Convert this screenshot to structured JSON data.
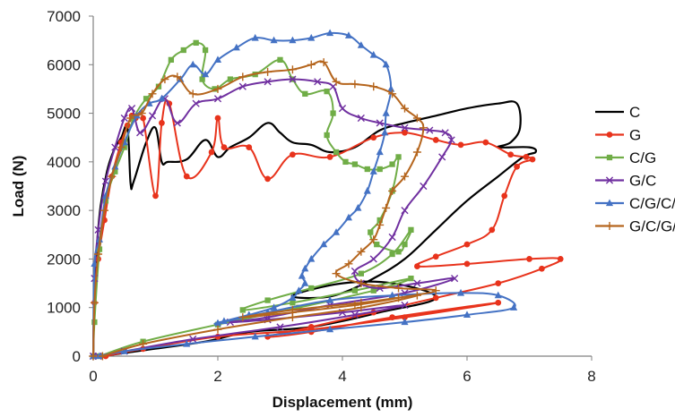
{
  "chart_data": {
    "type": "line",
    "xlabel": "Displacement (mm)",
    "ylabel": "Load (N)",
    "xlim": [
      0,
      8
    ],
    "ylim": [
      0,
      7000
    ],
    "xticks": [
      0,
      2,
      4,
      6,
      8
    ],
    "yticks": [
      0,
      1000,
      2000,
      3000,
      4000,
      5000,
      6000,
      7000
    ],
    "grid": false,
    "legend_position": "right",
    "series": [
      {
        "name": "C",
        "color": "#000000",
        "marker": "none",
        "x": [
          0,
          0.02,
          0.06,
          0.12,
          0.22,
          0.32,
          0.45,
          0.55,
          0.6,
          0.65,
          0.85,
          1.0,
          1.1,
          1.2,
          1.5,
          1.8,
          2.0,
          2.2,
          2.5,
          2.8,
          3.0,
          3.2,
          3.5,
          3.8,
          4.2,
          4.6,
          5.0,
          5.5,
          6.0,
          6.5,
          6.8,
          6.85,
          6.7,
          6.5,
          7.0,
          7.1,
          6.9,
          6.5,
          6.0,
          5.5,
          5.0,
          4.5,
          4.0,
          3.6,
          3.2,
          4.0,
          4.8,
          5.5,
          4.6,
          3.5,
          2.5,
          1.8,
          0.8,
          0.15
        ],
        "y": [
          0,
          1400,
          2300,
          3100,
          3800,
          4200,
          4500,
          4700,
          3550,
          3600,
          4400,
          4700,
          4000,
          4000,
          4050,
          4450,
          4100,
          4300,
          4500,
          4800,
          4600,
          4400,
          4350,
          4200,
          4300,
          4650,
          4800,
          4950,
          5100,
          5200,
          5200,
          4700,
          4400,
          4300,
          4300,
          4200,
          4100,
          3700,
          3200,
          2600,
          2000,
          1600,
          1300,
          1200,
          1250,
          1500,
          1500,
          1200,
          900,
          600,
          500,
          300,
          120,
          0
        ]
      },
      {
        "name": "G",
        "color": "#e8331c",
        "marker": "circle",
        "x": [
          0,
          0.02,
          0.08,
          0.18,
          0.3,
          0.45,
          0.55,
          0.62,
          0.68,
          0.8,
          1.0,
          1.1,
          1.22,
          1.5,
          1.9,
          2.0,
          2.1,
          2.5,
          2.8,
          3.2,
          3.8,
          4.5,
          5.0,
          5.5,
          5.9,
          6.3,
          6.7,
          6.95,
          7.05,
          6.8,
          6.6,
          6.4,
          6.0,
          5.5,
          5.2,
          6.0,
          7.0,
          7.5,
          7.2,
          6.5,
          5.5,
          4.5,
          3.5,
          2.8,
          3.5,
          4.8,
          6.5,
          5.0,
          3.5,
          2.0,
          0.8,
          0.2
        ],
        "y": [
          0,
          1100,
          2000,
          2800,
          3700,
          4400,
          4750,
          4950,
          4900,
          4900,
          3300,
          4800,
          5200,
          3700,
          4200,
          4900,
          4300,
          4300,
          3650,
          4150,
          4100,
          4500,
          4600,
          4450,
          4350,
          4400,
          4150,
          4100,
          4050,
          3900,
          3300,
          2600,
          2300,
          2050,
          1850,
          1900,
          2000,
          2000,
          1800,
          1500,
          1200,
          900,
          600,
          400,
          500,
          800,
          1100,
          800,
          550,
          400,
          150,
          0
        ]
      },
      {
        "name": "C/G",
        "color": "#70ad47",
        "marker": "square",
        "x": [
          0,
          0.02,
          0.1,
          0.2,
          0.35,
          0.5,
          0.65,
          0.85,
          1.05,
          1.25,
          1.45,
          1.65,
          1.8,
          1.75,
          1.95,
          2.2,
          2.6,
          3.0,
          3.2,
          3.4,
          3.75,
          3.85,
          3.75,
          3.9,
          4.05,
          4.2,
          4.4,
          4.6,
          4.8,
          4.9,
          4.8,
          4.6,
          4.45,
          4.55,
          4.9,
          5.0,
          5.1,
          4.8,
          4.3,
          3.5,
          2.8,
          2.4,
          3.2,
          4.2,
          5.1,
          4.5,
          3.3,
          2.0,
          0.8,
          0.1
        ],
        "y": [
          0,
          700,
          2200,
          3200,
          3800,
          4300,
          4900,
          5300,
          5550,
          6100,
          6300,
          6450,
          6300,
          5700,
          5500,
          5700,
          5800,
          6100,
          5700,
          5400,
          5450,
          5000,
          4550,
          4200,
          4000,
          3950,
          3850,
          3850,
          3950,
          4100,
          3400,
          2800,
          2550,
          2300,
          2150,
          2300,
          2600,
          2100,
          1700,
          1400,
          1150,
          950,
          1100,
          1350,
          1600,
          1350,
          1000,
          650,
          300,
          0
        ]
      },
      {
        "name": "G/C",
        "color": "#7030a0",
        "marker": "x",
        "x": [
          0,
          0.02,
          0.08,
          0.2,
          0.35,
          0.5,
          0.62,
          0.75,
          0.95,
          1.15,
          1.35,
          1.65,
          2.0,
          2.4,
          2.8,
          3.2,
          3.6,
          3.85,
          4.0,
          4.3,
          4.6,
          5.0,
          5.4,
          5.65,
          5.75,
          5.6,
          5.3,
          5.0,
          4.8,
          4.5,
          4.2,
          4.3,
          4.6,
          5.2,
          5.8,
          5.0,
          3.8,
          2.8,
          2.2,
          2.8,
          4.0,
          5.0,
          4.2,
          3.0,
          1.6,
          0.5,
          0.08
        ],
        "y": [
          0,
          1600,
          2600,
          3600,
          4300,
          4900,
          5100,
          4600,
          4950,
          5300,
          4800,
          5200,
          5300,
          5550,
          5650,
          5700,
          5650,
          5550,
          5100,
          4900,
          4800,
          4700,
          4650,
          4600,
          4450,
          4100,
          3500,
          3000,
          2450,
          2000,
          1750,
          1500,
          1400,
          1500,
          1600,
          1300,
          1050,
          800,
          700,
          750,
          900,
          1050,
          850,
          600,
          350,
          100,
          0
        ]
      },
      {
        "name": "C/G/C/G",
        "color": "#4472c4",
        "marker": "triangle",
        "x": [
          0,
          0.02,
          0.1,
          0.2,
          0.35,
          0.5,
          0.7,
          0.9,
          1.1,
          1.4,
          1.6,
          1.8,
          2.0,
          2.3,
          2.6,
          2.9,
          3.2,
          3.5,
          3.8,
          4.1,
          4.3,
          4.5,
          4.7,
          4.78,
          4.7,
          4.68,
          4.6,
          4.5,
          4.4,
          4.25,
          4.1,
          3.9,
          3.7,
          3.5,
          3.4,
          3.35,
          3.4,
          3.3,
          3.2,
          2.9,
          2.5,
          2.1,
          2.0,
          2.8,
          3.8,
          4.8,
          5.9,
          6.5,
          6.75,
          6.0,
          5.0,
          3.8,
          2.6,
          1.5,
          0.5,
          0.1
        ],
        "y": [
          0,
          1900,
          2400,
          3300,
          3900,
          4400,
          4950,
          5200,
          5300,
          5700,
          6000,
          5800,
          6100,
          6350,
          6550,
          6500,
          6500,
          6550,
          6650,
          6600,
          6400,
          6200,
          6000,
          5500,
          5000,
          4600,
          4200,
          3800,
          3400,
          3050,
          2850,
          2550,
          2300,
          2000,
          1800,
          1650,
          1500,
          1350,
          1200,
          1000,
          850,
          720,
          680,
          900,
          1150,
          1250,
          1300,
          1250,
          1000,
          850,
          700,
          550,
          400,
          250,
          100,
          0
        ]
      },
      {
        "name": "G/C/G/C",
        "color": "#b5651d",
        "marker": "plus",
        "x": [
          0,
          0.02,
          0.08,
          0.18,
          0.3,
          0.45,
          0.6,
          0.78,
          0.95,
          1.15,
          1.35,
          1.6,
          2.0,
          2.4,
          2.8,
          3.2,
          3.5,
          3.7,
          3.9,
          4.2,
          4.5,
          4.8,
          5.0,
          5.2,
          5.3,
          5.2,
          5.0,
          4.8,
          4.7,
          4.6,
          4.5,
          4.3,
          4.1,
          3.9,
          4.3,
          4.9,
          5.5,
          4.9,
          4.2,
          3.2,
          2.4,
          3.2,
          4.3,
          5.2,
          4.3,
          3.2,
          2.0,
          0.8,
          0.15
        ],
        "y": [
          0,
          1100,
          2100,
          3000,
          3700,
          4300,
          4900,
          5000,
          5400,
          5700,
          5750,
          5400,
          5500,
          5750,
          5850,
          5900,
          6000,
          6050,
          5650,
          5600,
          5550,
          5400,
          5100,
          4900,
          4700,
          4200,
          3700,
          3400,
          3050,
          2700,
          2400,
          2150,
          1900,
          1700,
          1500,
          1400,
          1350,
          1200,
          1050,
          900,
          800,
          950,
          1100,
          1250,
          1000,
          800,
          550,
          250,
          0
        ]
      }
    ]
  }
}
